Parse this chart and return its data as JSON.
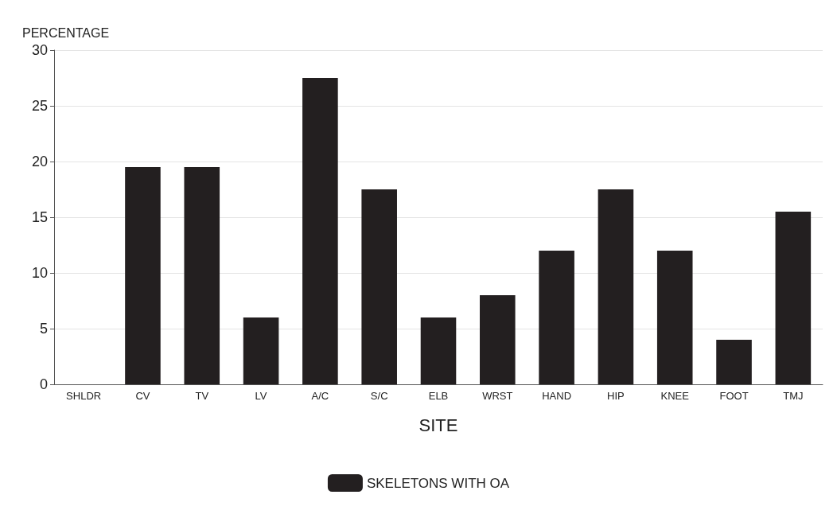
{
  "chart_data": {
    "type": "bar",
    "xlabel": "SITE",
    "ylabel": "PERCENTAGE",
    "categories": [
      "SHLDR",
      "CV",
      "TV",
      "LV",
      "A/C",
      "S/C",
      "ELB",
      "WRST",
      "HAND",
      "HIP",
      "KNEE",
      "FOOT",
      "TMJ"
    ],
    "series": [
      {
        "name": "SKELETONS WITH OA",
        "color": "#231f20",
        "values": [
          0,
          19.5,
          19.5,
          6,
          27.5,
          17.5,
          6,
          8,
          12,
          17.5,
          12,
          4,
          15.5
        ]
      }
    ],
    "ylim": [
      0,
      30
    ],
    "yticks": [
      0,
      5,
      10,
      15,
      20,
      25,
      30
    ],
    "grid": "y",
    "legend": "bottom"
  }
}
